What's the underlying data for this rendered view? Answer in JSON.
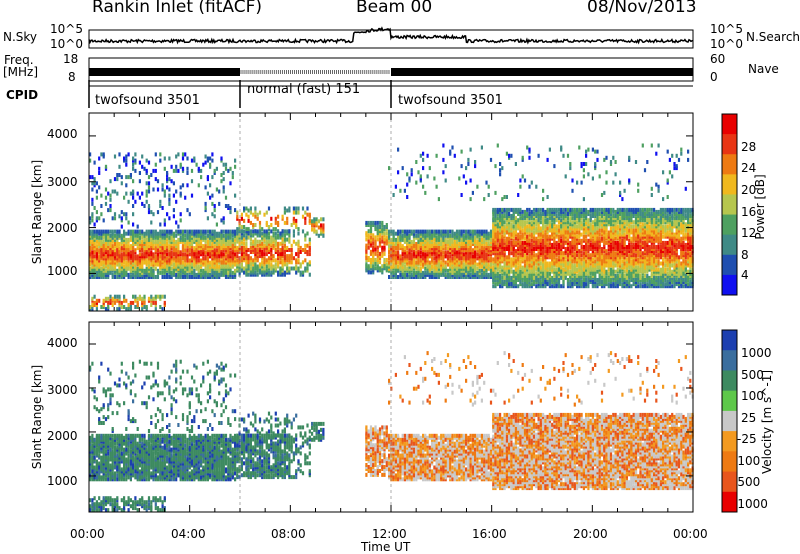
{
  "header": {
    "station": "Rankin Inlet (fitACF)",
    "beam": "Beam 00",
    "date": "08/Nov/2013"
  },
  "strip_labels": {
    "nsky": "N.Sky",
    "nsky_ticks": [
      "10^5",
      "10^0"
    ],
    "nsearch": "N.Search",
    "nsearch_ticks": [
      "10^5",
      "10^0"
    ],
    "freq": "Freq.",
    "freq_unit": "[MHz]",
    "freq_ticks": [
      "18",
      "8"
    ],
    "nave": "Nave",
    "nave_ticks": [
      "60",
      "0"
    ],
    "cpid": "CPID"
  },
  "cpid_segments": [
    {
      "label": "twofsound 3501",
      "start": 0,
      "end": 6.0
    },
    {
      "label": "normal (fast) 151",
      "start": 6.0,
      "end": 12.0
    },
    {
      "label": "twofsound 3501",
      "start": 12.0,
      "end": 24.0
    }
  ],
  "chart_data": [
    {
      "type": "heatmap",
      "ylabel": "Slant Range [km]",
      "y_ticks": [
        "1000",
        "2000",
        "3000",
        "4000"
      ],
      "colorbar_label": "Power [dB]",
      "colorbar_ticks": [
        "4",
        "8",
        "12",
        "16",
        "20",
        "24",
        "28"
      ],
      "colorscale": [
        "#1010f0",
        "#1f4fb0",
        "#3f8a86",
        "#4ea060",
        "#b6c64e",
        "#f0b81e",
        "#ee7a12",
        "#e83514",
        "#e80000"
      ],
      "ylim": [
        180,
        4500
      ]
    },
    {
      "type": "heatmap",
      "ylabel": "Slant Range [km]",
      "y_ticks": [
        "1000",
        "2000",
        "3000",
        "4000"
      ],
      "colorbar_label": "Velocity [m s^-1]",
      "colorbar_ticks": [
        "1000",
        "500",
        "100",
        "25",
        "-25",
        "-100",
        "-500",
        "-1000"
      ],
      "colorscale": [
        "#1c3fb0",
        "#3a6e9e",
        "#3d8a60",
        "#5ec84a",
        "#c8c8c8",
        "#f39a20",
        "#ee7a12",
        "#e8551c",
        "#e80000"
      ],
      "ylim": [
        180,
        4500
      ]
    }
  ],
  "x_axis": {
    "label": "Time UT",
    "ticks": [
      "00:00",
      "04:00",
      "08:00",
      "12:00",
      "16:00",
      "20:00",
      "00:00"
    ]
  }
}
